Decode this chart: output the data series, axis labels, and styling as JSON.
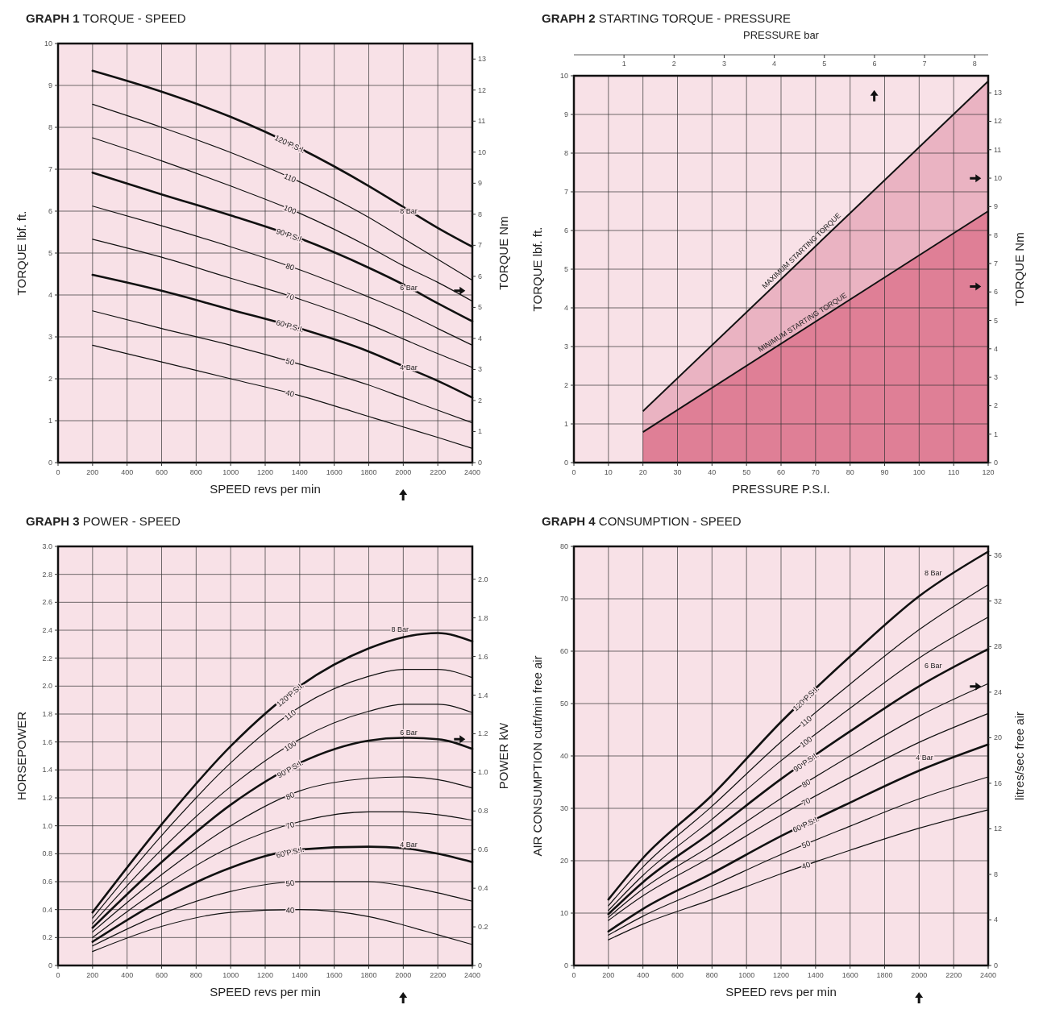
{
  "chart_data": [
    {
      "type": "line",
      "title": "GRAPH 1 TORQUE - SPEED",
      "xlabel": "SPEED revs per min",
      "ylabel": "TORQUE lbf. ft.",
      "y2label": "TORQUE Nm",
      "grid": true,
      "x": [
        200,
        600,
        1000,
        1400,
        1800,
        2000,
        2200,
        2400
      ],
      "xlim": [
        0,
        2400
      ],
      "xticks": [
        0,
        200,
        400,
        600,
        800,
        1000,
        1200,
        1400,
        1600,
        1800,
        2000,
        2200,
        2400
      ],
      "ylim": [
        0,
        10
      ],
      "yticks": [
        0,
        1,
        2,
        3,
        4,
        5,
        6,
        7,
        8,
        9,
        10
      ],
      "y2lim": [
        0,
        13.5
      ],
      "y2ticks": [
        0,
        1,
        2,
        3,
        4,
        5,
        6,
        7,
        8,
        9,
        10,
        11,
        12,
        13
      ],
      "series": [
        {
          "name": "120 P.S.I.",
          "color": "#111111",
          "values": [
            9.35,
            8.85,
            8.25,
            7.5,
            6.6,
            6.1,
            5.6,
            5.15
          ]
        },
        {
          "name": "110",
          "color": "#111111",
          "values": [
            8.55,
            8.0,
            7.4,
            6.7,
            5.85,
            5.35,
            4.85,
            4.35
          ]
        },
        {
          "name": "100",
          "color": "#111111",
          "values": [
            7.75,
            7.2,
            6.6,
            5.95,
            5.15,
            4.7,
            4.3,
            3.85
          ]
        },
        {
          "name": "90 P.S.I.",
          "color": "#111111",
          "values": [
            6.92,
            6.4,
            5.9,
            5.35,
            4.65,
            4.25,
            3.8,
            3.37
          ]
        },
        {
          "name": "80",
          "color": "#111111",
          "values": [
            6.12,
            5.65,
            5.15,
            4.6,
            3.95,
            3.6,
            3.2,
            2.8
          ]
        },
        {
          "name": "70",
          "color": "#111111",
          "values": [
            5.33,
            4.9,
            4.4,
            3.9,
            3.3,
            2.95,
            2.6,
            2.27
          ]
        },
        {
          "name": "60 P.S.I.",
          "color": "#111111",
          "values": [
            4.48,
            4.1,
            3.65,
            3.2,
            2.65,
            2.3,
            1.95,
            1.55
          ]
        },
        {
          "name": "50",
          "color": "#111111",
          "values": [
            3.62,
            3.2,
            2.8,
            2.35,
            1.85,
            1.55,
            1.25,
            0.95
          ]
        },
        {
          "name": "40",
          "color": "#111111",
          "values": [
            2.8,
            2.4,
            2.0,
            1.6,
            1.1,
            0.85,
            0.6,
            0.34
          ]
        }
      ],
      "annotations": [
        {
          "text": "8 Bar",
          "x": 2100,
          "y": 5.85
        },
        {
          "text": "6 Bar",
          "x": 2100,
          "y": 4.02
        },
        {
          "text": "4 Bar",
          "x": 2100,
          "y": 2.12
        }
      ]
    },
    {
      "type": "area",
      "title": "GRAPH 2 STARTING TORQUE - PRESSURE",
      "xlabel": "PRESSURE P.S.I.",
      "x2label": "PRESSURE bar",
      "ylabel": "TORQUE lbf. ft.",
      "y2label": "TORQUE Nm",
      "grid": true,
      "x": [
        20,
        120
      ],
      "xlim": [
        0,
        120
      ],
      "xticks": [
        0,
        10,
        20,
        30,
        40,
        50,
        60,
        70,
        80,
        90,
        100,
        110,
        120
      ],
      "x2lim": [
        0,
        8.27
      ],
      "x2ticks": [
        1,
        2,
        3,
        4,
        5,
        6,
        7,
        8
      ],
      "ylim": [
        0,
        10
      ],
      "yticks": [
        0,
        1,
        2,
        3,
        4,
        5,
        6,
        7,
        8,
        9,
        10
      ],
      "y2lim": [
        0,
        13.6
      ],
      "y2ticks": [
        0,
        1,
        2,
        3,
        4,
        5,
        6,
        7,
        8,
        9,
        10,
        11,
        12,
        13
      ],
      "series": [
        {
          "name": "MAXIMUM STARTING TORQUE",
          "color": "#eab3c2",
          "values": [
            1.33,
            9.86
          ]
        },
        {
          "name": "MINIMUM STARTING TORQUE",
          "color": "#df7f96",
          "values": [
            0.79,
            6.5
          ]
        }
      ]
    },
    {
      "type": "line",
      "title": "GRAPH 3 POWER - SPEED",
      "xlabel": "SPEED revs per min",
      "ylabel": "HORSEPOWER",
      "y2label": "POWER kW",
      "grid": true,
      "x": [
        200,
        600,
        1000,
        1400,
        1800,
        2000,
        2200,
        2400
      ],
      "xlim": [
        0,
        2400
      ],
      "xticks": [
        0,
        200,
        400,
        600,
        800,
        1000,
        1200,
        1400,
        1600,
        1800,
        2000,
        2200,
        2400
      ],
      "ylim": [
        0,
        3
      ],
      "yticks": [
        0,
        0.2,
        0.4,
        0.6,
        0.8,
        {
          "value": 1,
          "label": "1.0"
        },
        1.2,
        1.4,
        1.6,
        1.8,
        {
          "value": 2,
          "label": "2.0"
        },
        2.2,
        2.4,
        2.6,
        2.8,
        {
          "value": 3,
          "label": "3.0"
        }
      ],
      "y2lim": [
        0,
        2.17
      ],
      "y2ticks": [
        0,
        0.2,
        0.4,
        0.6,
        0.8,
        {
          "value": 1,
          "label": "1.0"
        },
        1.2,
        1.4,
        1.6,
        1.8,
        {
          "value": 2,
          "label": "2.0"
        }
      ],
      "series": [
        {
          "name": "120 P.S.I.",
          "color": "#111111",
          "values": [
            0.38,
            1.01,
            1.57,
            2.0,
            2.27,
            2.35,
            2.38,
            2.32
          ]
        },
        {
          "name": "110",
          "color": "#111111",
          "values": [
            0.34,
            0.93,
            1.45,
            1.85,
            2.07,
            2.12,
            2.12,
            2.06
          ]
        },
        {
          "name": "100",
          "color": "#111111",
          "values": [
            0.3,
            0.83,
            1.28,
            1.62,
            1.82,
            1.87,
            1.87,
            1.81
          ]
        },
        {
          "name": "90 P.S.I.",
          "color": "#111111",
          "values": [
            0.27,
            0.74,
            1.15,
            1.45,
            1.61,
            1.63,
            1.62,
            1.55
          ]
        },
        {
          "name": "80",
          "color": "#111111",
          "values": [
            0.24,
            0.65,
            1.0,
            1.25,
            1.34,
            1.35,
            1.33,
            1.27
          ]
        },
        {
          "name": "70",
          "color": "#111111",
          "values": [
            0.2,
            0.56,
            0.85,
            1.03,
            1.1,
            1.1,
            1.08,
            1.04
          ]
        },
        {
          "name": "60 P.S.I.",
          "color": "#111111",
          "values": [
            0.17,
            0.47,
            0.7,
            0.83,
            0.85,
            0.84,
            0.8,
            0.74
          ]
        },
        {
          "name": "50",
          "color": "#111111",
          "values": [
            0.14,
            0.37,
            0.53,
            0.6,
            0.6,
            0.57,
            0.52,
            0.46
          ]
        },
        {
          "name": "40",
          "color": "#111111",
          "values": [
            0.1,
            0.28,
            0.38,
            0.4,
            0.35,
            0.29,
            0.22,
            0.15
          ]
        }
      ],
      "annotations": [
        {
          "text": "8 Bar",
          "x": 2050,
          "y": 2.36
        },
        {
          "text": "6 Bar",
          "x": 2100,
          "y": 1.62
        },
        {
          "text": "4 Bar",
          "x": 2100,
          "y": 0.82
        }
      ]
    },
    {
      "type": "line",
      "title": "GRAPH 4 CONSUMPTION - SPEED",
      "xlabel": "SPEED revs per min",
      "ylabel": "AIR CONSUMPTION cuft/min free air",
      "y2label": "litres/sec free air",
      "grid": true,
      "x": [
        200,
        400,
        800,
        1200,
        1600,
        2000,
        2400
      ],
      "xlim": [
        0,
        2400
      ],
      "xticks": [
        0,
        200,
        400,
        600,
        800,
        1000,
        1200,
        1400,
        1600,
        1800,
        2000,
        2200,
        2400
      ],
      "ylim": [
        0,
        80
      ],
      "yticks": [
        0,
        10,
        20,
        30,
        40,
        50,
        60,
        70,
        80
      ],
      "y2lim": [
        0,
        36.8
      ],
      "y2ticks": [
        0,
        4,
        8,
        12,
        16,
        20,
        24,
        28,
        32,
        36
      ],
      "series": [
        {
          "name": "120 P.S.I.",
          "color": "#111111",
          "values": [
            12.6,
            20.5,
            32.5,
            46.5,
            59,
            70.5,
            79
          ]
        },
        {
          "name": "110",
          "color": "#111111",
          "values": [
            11.4,
            18.8,
            30.4,
            42.7,
            53.7,
            64.1,
            72.7
          ]
        },
        {
          "name": "100",
          "color": "#111111",
          "values": [
            10.5,
            17.2,
            27.9,
            39.1,
            49.1,
            58.7,
            66.5
          ]
        },
        {
          "name": "90 P.S.I.",
          "color": "#111111",
          "values": [
            9.8,
            15.9,
            25.5,
            35.6,
            44.7,
            53.3,
            60.4
          ]
        },
        {
          "name": "80",
          "color": "#111111",
          "values": [
            9.2,
            14.6,
            23.0,
            31.9,
            40.0,
            47.6,
            53.8
          ]
        },
        {
          "name": "70",
          "color": "#111111",
          "values": [
            8.6,
            13.3,
            20.8,
            28.7,
            35.9,
            42.6,
            48.1
          ]
        },
        {
          "name": "60 P.S.I.",
          "color": "#111111",
          "values": [
            6.5,
            10.8,
            17.6,
            24.7,
            31.1,
            37.2,
            42.2
          ]
        },
        {
          "name": "50",
          "color": "#111111",
          "values": [
            5.8,
            9.4,
            15.2,
            21.2,
            26.6,
            31.8,
            36
          ]
        },
        {
          "name": "40",
          "color": "#111111",
          "values": [
            4.9,
            7.9,
            12.6,
            17.5,
            22.0,
            26.2,
            29.7
          ]
        }
      ],
      "annotations": [
        {
          "text": "8 Bar",
          "x": 2150,
          "y": 73.7
        },
        {
          "text": "6 Bar",
          "x": 2150,
          "y": 56
        },
        {
          "text": "4 Bar",
          "x": 2100,
          "y": 38.5
        }
      ]
    }
  ]
}
